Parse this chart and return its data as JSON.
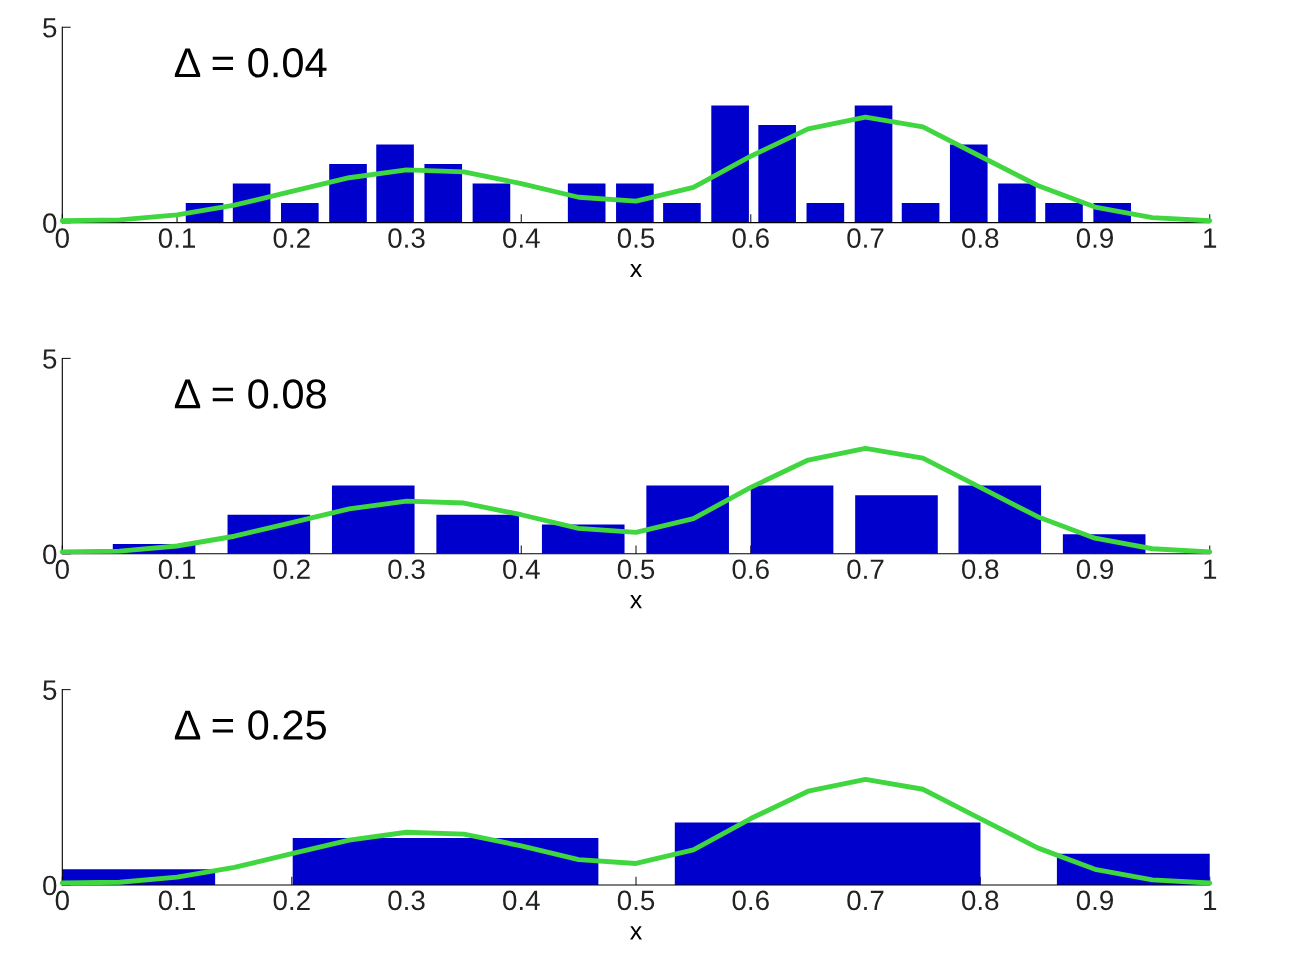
{
  "chart_data": [
    {
      "type": "bar",
      "xlabel": "x",
      "annotations": [
        "Δ = 0.04"
      ],
      "xlim": [
        0,
        1
      ],
      "ylim": [
        0,
        5
      ],
      "yticks": [
        0,
        5
      ],
      "xticks": [
        0,
        0.1,
        0.2,
        0.3,
        0.4,
        0.5,
        0.6,
        0.7,
        0.8,
        0.9,
        1
      ],
      "grid": false,
      "series": [
        {
          "color": "#0000cc",
          "x": [
            0.124,
            0.165,
            0.207,
            0.249,
            0.29,
            0.332,
            0.374,
            0.415,
            0.457,
            0.499,
            0.54,
            0.582,
            0.623,
            0.665,
            0.707,
            0.748,
            0.79,
            0.832,
            0.873,
            0.915
          ],
          "values": [
            0.5,
            1.0,
            0.5,
            1.5,
            2.0,
            1.5,
            1.0,
            0,
            1.0,
            1.0,
            0.5,
            3.0,
            2.5,
            0.5,
            3.0,
            0.5,
            2.0,
            1.0,
            0.5,
            0.5
          ]
        },
        {
          "type": "line",
          "color": "#3fd63f",
          "x": [
            0,
            0.05,
            0.1,
            0.15,
            0.2,
            0.25,
            0.3,
            0.35,
            0.4,
            0.45,
            0.5,
            0.55,
            0.6,
            0.65,
            0.7,
            0.75,
            0.8,
            0.85,
            0.9,
            0.95,
            1
          ],
          "values": [
            0.05,
            0.07,
            0.2,
            0.45,
            0.8,
            1.15,
            1.35,
            1.3,
            1.0,
            0.65,
            0.55,
            0.9,
            1.7,
            2.4,
            2.7,
            2.45,
            1.7,
            0.95,
            0.4,
            0.13,
            0.05
          ]
        }
      ]
    },
    {
      "type": "bar",
      "xlabel": "x",
      "annotations": [
        "Δ = 0.08"
      ],
      "xlim": [
        0,
        1
      ],
      "ylim": [
        0,
        5
      ],
      "yticks": [
        0,
        5
      ],
      "xticks": [
        0,
        0.1,
        0.2,
        0.3,
        0.4,
        0.5,
        0.6,
        0.7,
        0.8,
        0.9,
        1
      ],
      "grid": false,
      "series": [
        {
          "color": "#0000cc",
          "x": [
            0.08,
            0.18,
            0.271,
            0.362,
            0.454,
            0.545,
            0.636,
            0.727,
            0.817,
            0.908
          ],
          "values": [
            0.25,
            1.0,
            1.75,
            1.0,
            0.75,
            1.75,
            1.75,
            1.5,
            1.75,
            0.5
          ]
        },
        {
          "type": "line",
          "color": "#3fd63f",
          "x": [
            0,
            0.05,
            0.1,
            0.15,
            0.2,
            0.25,
            0.3,
            0.35,
            0.4,
            0.45,
            0.5,
            0.55,
            0.6,
            0.65,
            0.7,
            0.75,
            0.8,
            0.85,
            0.9,
            0.95,
            1
          ],
          "values": [
            0.05,
            0.07,
            0.2,
            0.45,
            0.8,
            1.15,
            1.35,
            1.3,
            1.0,
            0.65,
            0.55,
            0.9,
            1.7,
            2.4,
            2.7,
            2.45,
            1.7,
            0.95,
            0.4,
            0.13,
            0.05
          ]
        }
      ]
    },
    {
      "type": "bar",
      "xlabel": "x",
      "annotations": [
        "Δ = 0.25"
      ],
      "xlim": [
        0,
        1
      ],
      "ylim": [
        0,
        5
      ],
      "yticks": [
        0,
        5
      ],
      "xticks": [
        0,
        0.1,
        0.2,
        0.3,
        0.4,
        0.5,
        0.6,
        0.7,
        0.8,
        0.9,
        1
      ],
      "grid": false,
      "series": [
        {
          "color": "#0000cc",
          "x": [
            0.0,
            0.334,
            0.667,
            1.0
          ],
          "values": [
            0.4,
            1.2,
            1.6,
            0.8
          ]
        },
        {
          "type": "line",
          "color": "#3fd63f",
          "x": [
            0,
            0.05,
            0.1,
            0.15,
            0.2,
            0.25,
            0.3,
            0.35,
            0.4,
            0.45,
            0.5,
            0.55,
            0.6,
            0.65,
            0.7,
            0.75,
            0.8,
            0.85,
            0.9,
            0.95,
            1
          ],
          "values": [
            0.05,
            0.07,
            0.2,
            0.45,
            0.8,
            1.15,
            1.35,
            1.3,
            1.0,
            0.65,
            0.55,
            0.9,
            1.7,
            2.4,
            2.7,
            2.45,
            1.7,
            0.95,
            0.4,
            0.13,
            0.05
          ]
        }
      ]
    }
  ]
}
